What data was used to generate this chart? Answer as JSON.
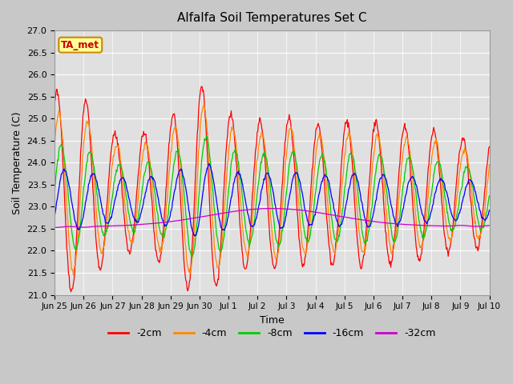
{
  "title": "Alfalfa Soil Temperatures Set C",
  "xlabel": "Time",
  "ylabel": "Soil Temperature (C)",
  "ylim": [
    21.0,
    27.0
  ],
  "yticks": [
    21.0,
    21.5,
    22.0,
    22.5,
    23.0,
    23.5,
    24.0,
    24.5,
    25.0,
    25.5,
    26.0,
    26.5,
    27.0
  ],
  "xtick_labels": [
    "Jun 25",
    "Jun 26",
    "Jun 27",
    "Jun 28",
    "Jun 29",
    "Jun 30",
    "Jul 1",
    "Jul 2",
    "Jul 3",
    "Jul 4",
    "Jul 5",
    "Jul 6",
    "Jul 7",
    "Jul 8",
    "Jul 9",
    "Jul 10"
  ],
  "line_colors": {
    "-2cm": "#ff0000",
    "-4cm": "#ff8800",
    "-8cm": "#00cc00",
    "-16cm": "#0000ff",
    "-32cm": "#cc00cc"
  },
  "legend_label": "TA_met",
  "legend_box_color": "#ffff99",
  "legend_box_edge": "#cc8800",
  "fig_facecolor": "#c8c8c8",
  "ax_facecolor": "#e0e0e0"
}
